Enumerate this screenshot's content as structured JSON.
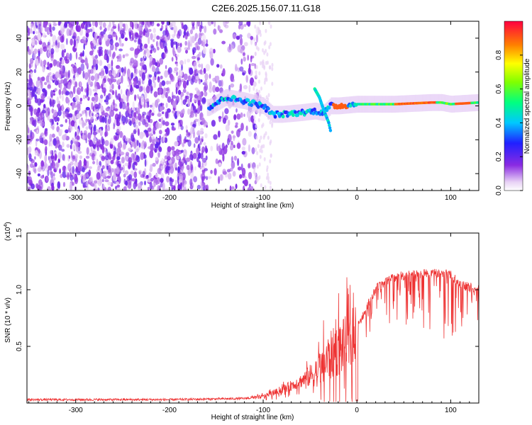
{
  "figure": {
    "title": "C2E6.2025.156.07.11.G18"
  },
  "chart_data": [
    {
      "type": "heatmap",
      "title": "C2E6.2025.156.07.11.G18",
      "xlabel": "Height of straight line (km)",
      "ylabel": "Frequency (Hz)",
      "xlim": [
        -352,
        130
      ],
      "ylim": [
        -50,
        50
      ],
      "x_ticks": [
        -300,
        -200,
        -100,
        0,
        100
      ],
      "x_tick_labels": [
        "-300",
        "-200",
        "-100",
        "0",
        "100"
      ],
      "y_ticks": [
        -40,
        -20,
        0,
        20,
        40
      ],
      "y_tick_labels": [
        "-40",
        "-20",
        "0",
        "20",
        "40"
      ],
      "ridge": {
        "x": [
          -158,
          -140,
          -120,
          -100,
          -90,
          -80,
          -60,
          -45,
          -35,
          -28,
          -20,
          0,
          40,
          80,
          90,
          100,
          130
        ],
        "freq": [
          -1,
          5,
          3,
          0,
          -5,
          -5,
          -4,
          -3,
          -4,
          0,
          0,
          1,
          1,
          2,
          2,
          1,
          2
        ]
      },
      "side_branch": {
        "x": [
          -45,
          -40,
          -35,
          -30,
          -28
        ],
        "freq": [
          10,
          5,
          -3,
          -10,
          -15
        ]
      },
      "colorbar": {
        "label": "Normalized spectral amplitude",
        "range": [
          0,
          1
        ],
        "ticks": [
          0.0,
          0.2,
          0.4,
          0.6,
          0.8
        ],
        "tick_labels": [
          "0.0",
          "0.2",
          "0.4",
          "0.6",
          "0.8"
        ]
      },
      "grid": false,
      "legend": "colorbar-right"
    },
    {
      "type": "line",
      "xlabel": "Height of straight line (km)",
      "ylabel": "SNR (10 * v/v)",
      "y_multiplier_label": "(x10",
      "y_multiplier_exponent": "4",
      "y_multiplier_close": ")",
      "xlim": [
        -352,
        130
      ],
      "ylim": [
        0,
        1.5
      ],
      "x_ticks": [
        -300,
        -200,
        -100,
        0,
        100
      ],
      "x_tick_labels": [
        "-300",
        "-200",
        "-100",
        "0",
        "100"
      ],
      "y_ticks": [
        0.5,
        1.0,
        1.5
      ],
      "y_tick_labels": [
        "0.5",
        "1.0",
        "1.5"
      ],
      "series": [
        {
          "color": "#ee3333",
          "envelope_x": [
            -352,
            -200,
            -120,
            -100,
            -80,
            -60,
            -40,
            -30,
            -20,
            -10,
            -5,
            0,
            20,
            40,
            60,
            80,
            90,
            100,
            110,
            130
          ],
          "envelope_mid": [
            0.03,
            0.03,
            0.04,
            0.06,
            0.12,
            0.2,
            0.3,
            0.42,
            0.5,
            0.55,
            0.52,
            0.7,
            1.05,
            1.15,
            1.18,
            1.18,
            1.19,
            1.18,
            1.08,
            1.05
          ],
          "envelope_spread": [
            0.02,
            0.02,
            0.02,
            0.04,
            0.08,
            0.15,
            0.35,
            0.55,
            0.6,
            0.65,
            0.55,
            0.25,
            0.35,
            0.45,
            0.5,
            0.6,
            0.65,
            0.6,
            0.5,
            0.4
          ],
          "max_value": 1.48
        }
      ],
      "grid": false,
      "legend": "none"
    }
  ]
}
